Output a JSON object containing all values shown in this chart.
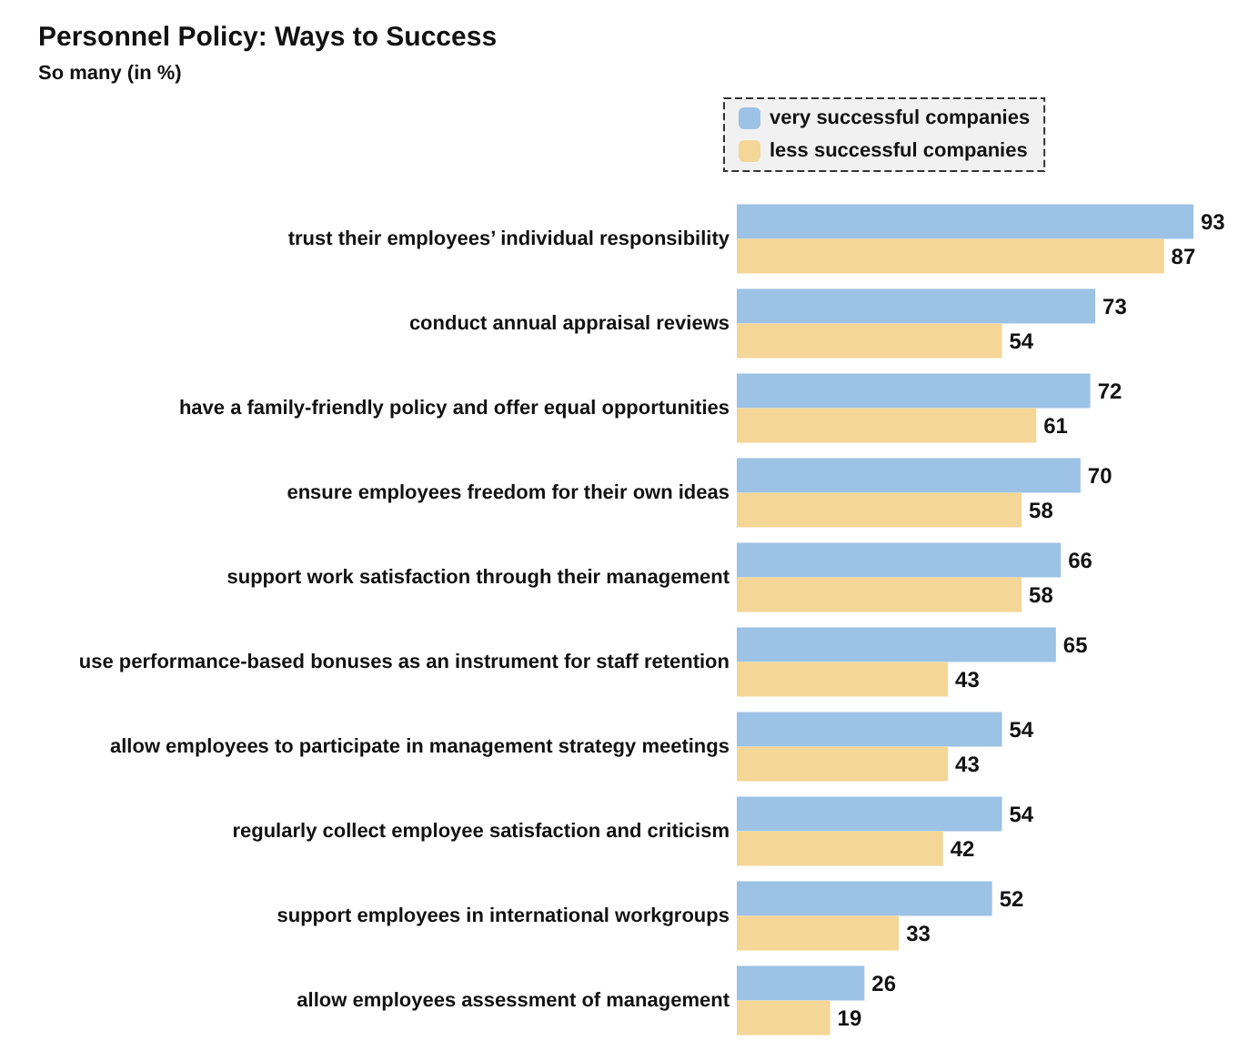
{
  "chart_data": {
    "type": "bar",
    "orientation": "horizontal",
    "title": "Personnel Policy: Ways to Success",
    "subtitle": "So many (in %)",
    "categories": [
      "trust their employees’ individual responsibility",
      "conduct annual appraisal reviews",
      "have a family-friendly policy and offer equal opportunities",
      "ensure employees freedom for their own ideas",
      "support work satisfaction through their management",
      "use performance-based bonuses as an instrument for staff retention",
      "allow employees to participate in management strategy meetings",
      "regularly collect employee satisfaction and criticism",
      "support employees in international workgroups",
      "allow employees assessment of management"
    ],
    "series": [
      {
        "name": "very successful companies",
        "color": "#9cc2e5",
        "values": [
          93,
          73,
          72,
          70,
          66,
          65,
          54,
          54,
          52,
          26
        ]
      },
      {
        "name": "less successful companies",
        "color": "#f4d696",
        "values": [
          87,
          54,
          61,
          58,
          58,
          43,
          43,
          42,
          33,
          19
        ]
      }
    ],
    "data_labels": true,
    "legend": "top",
    "grid": false
  }
}
